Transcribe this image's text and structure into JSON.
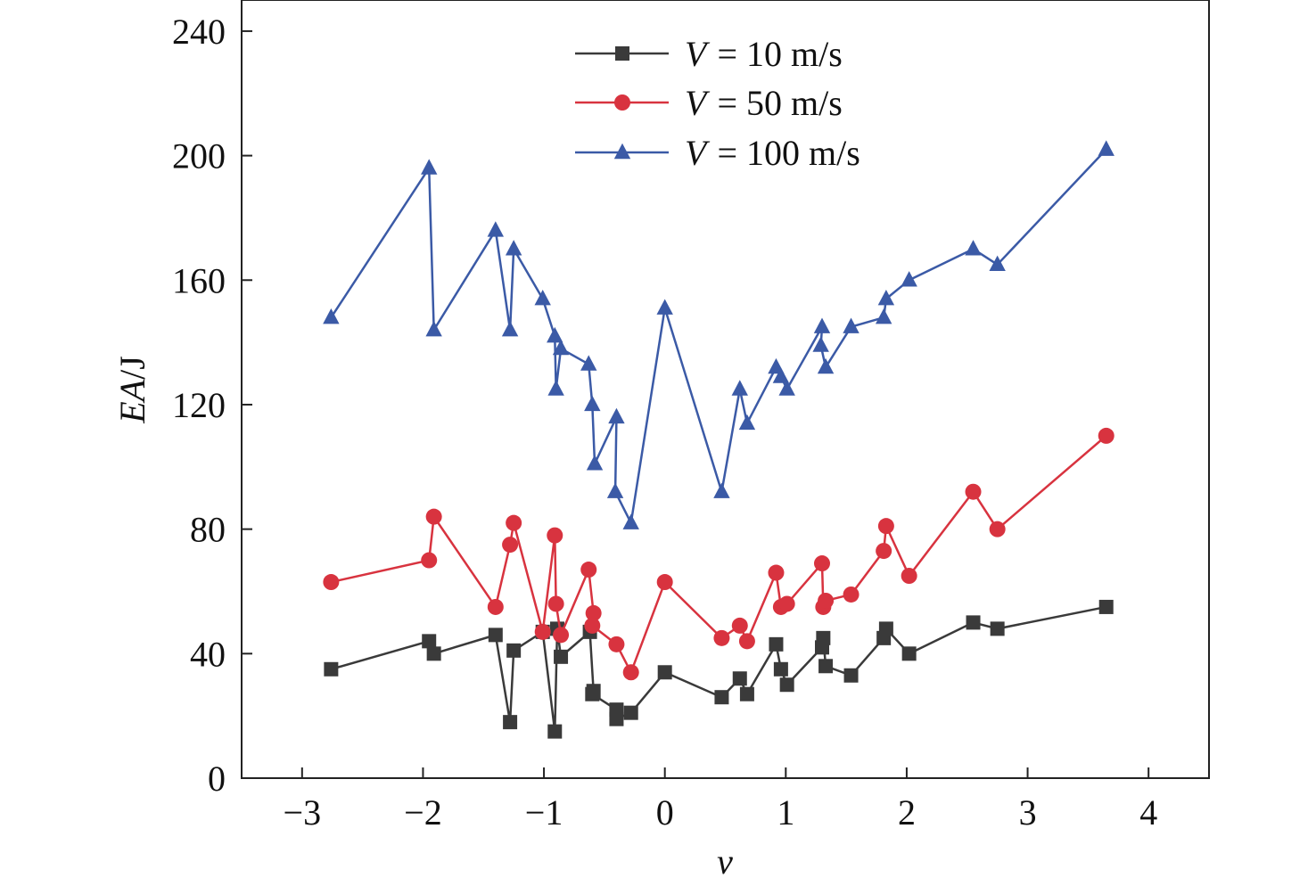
{
  "chart_data": {
    "type": "line",
    "xlabel": "ν",
    "ylabel_italic": "EA",
    "ylabel_unit": "/J",
    "xlim": [
      -3.5,
      4.5
    ],
    "ylim": [
      0,
      250
    ],
    "x_ticks": [
      -3,
      -2,
      -1,
      0,
      1,
      2,
      3,
      4
    ],
    "x_tick_labels": [
      "−3",
      "−2",
      "−1",
      "0",
      "1",
      "2",
      "3",
      "4"
    ],
    "y_ticks": [
      0,
      40,
      80,
      120,
      160,
      200,
      240
    ],
    "y_tick_labels": [
      "0",
      "40",
      "80",
      "120",
      "160",
      "200",
      "240"
    ],
    "legend_position": "top-center",
    "series": [
      {
        "name": "= 10 m/s",
        "legend_symbol": "V",
        "color": "#3a3a3a",
        "marker": "square",
        "x": [
          -2.76,
          -1.95,
          -1.91,
          -1.4,
          -1.28,
          -1.25,
          -1.01,
          -0.91,
          -0.89,
          -0.86,
          -0.62,
          -0.59,
          -0.6,
          -0.4,
          -0.4,
          -0.28,
          0.0,
          0.47,
          0.62,
          0.68,
          0.92,
          0.96,
          1.01,
          1.3,
          1.31,
          1.33,
          1.54,
          1.81,
          1.83,
          2.02,
          2.55,
          2.75,
          3.65
        ],
        "y": [
          35,
          44,
          40,
          46,
          18,
          41,
          47,
          15,
          48,
          39,
          47,
          28,
          27,
          22,
          19,
          21,
          34,
          26,
          32,
          27,
          43,
          35,
          30,
          42,
          45,
          36,
          33,
          45,
          48,
          40,
          50,
          48,
          55
        ]
      },
      {
        "name": "= 50 m/s",
        "legend_symbol": "V",
        "color": "#d8333f",
        "marker": "circle",
        "x": [
          -2.76,
          -1.95,
          -1.91,
          -1.4,
          -1.28,
          -1.25,
          -1.01,
          -0.91,
          -0.9,
          -0.86,
          -0.63,
          -0.59,
          -0.6,
          -0.4,
          -0.28,
          0.0,
          0.47,
          0.62,
          0.68,
          0.92,
          0.96,
          1.01,
          1.3,
          1.31,
          1.33,
          1.54,
          1.81,
          1.83,
          2.02,
          2.55,
          2.75,
          3.65
        ],
        "y": [
          63,
          70,
          84,
          55,
          75,
          82,
          47,
          78,
          56,
          46,
          67,
          53,
          49,
          43,
          34,
          63,
          45,
          49,
          44,
          66,
          55,
          56,
          69,
          55,
          57,
          59,
          73,
          81,
          65,
          92,
          80,
          110
        ]
      },
      {
        "name": "= 100 m/s",
        "legend_symbol": "V",
        "color": "#3b5aa6",
        "marker": "triangle",
        "x": [
          -2.76,
          -1.95,
          -1.91,
          -1.4,
          -1.28,
          -1.25,
          -1.01,
          -0.91,
          -0.9,
          -0.86,
          -0.63,
          -0.6,
          -0.58,
          -0.4,
          -0.41,
          -0.28,
          0.0,
          0.47,
          0.62,
          0.68,
          0.92,
          0.96,
          1.01,
          1.3,
          1.29,
          1.33,
          1.54,
          1.81,
          1.83,
          2.02,
          2.55,
          2.75,
          3.65
        ],
        "y": [
          148,
          196,
          144,
          176,
          144,
          170,
          154,
          142,
          125,
          138,
          133,
          120,
          101,
          116,
          92,
          82,
          151,
          92,
          125,
          114,
          132,
          129,
          125,
          145,
          139,
          132,
          145,
          148,
          154,
          160,
          170,
          165,
          202
        ]
      }
    ]
  }
}
